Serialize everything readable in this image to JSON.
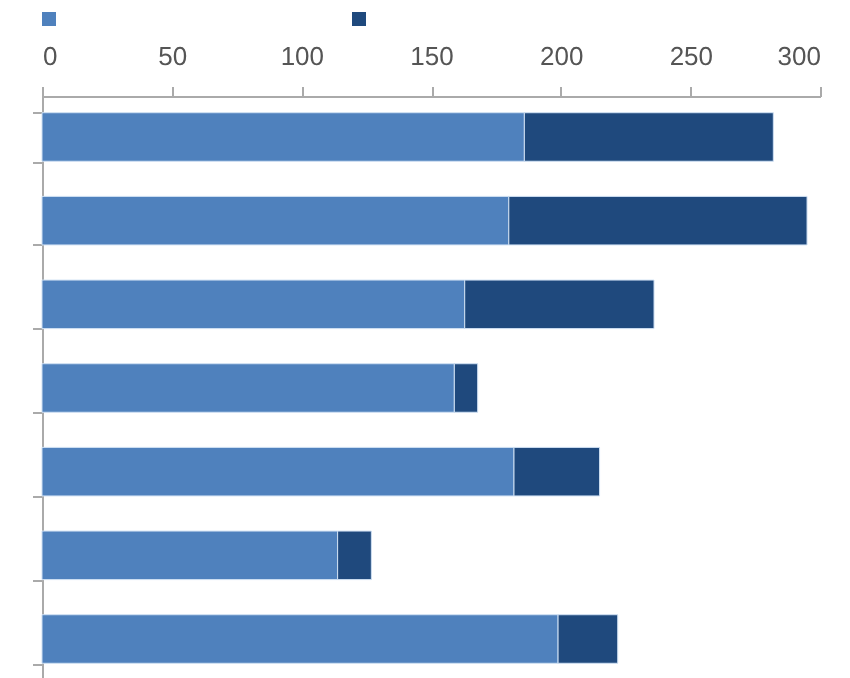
{
  "chart_data": {
    "type": "bar",
    "orientation": "horizontal",
    "stacked": true,
    "categories": [
      null,
      null,
      null,
      null,
      null,
      null,
      null
    ],
    "series": [
      {
        "color": "#4f81bd",
        "values": [
          186,
          180,
          163,
          159,
          182,
          114,
          199
        ]
      },
      {
        "color": "#1f497d",
        "values": [
          96,
          115,
          73,
          9,
          33,
          13,
          23
        ]
      }
    ],
    "xlim": [
      0,
      300
    ],
    "xticks": [
      0,
      50,
      100,
      150,
      200,
      250,
      300
    ],
    "grid": false
  }
}
